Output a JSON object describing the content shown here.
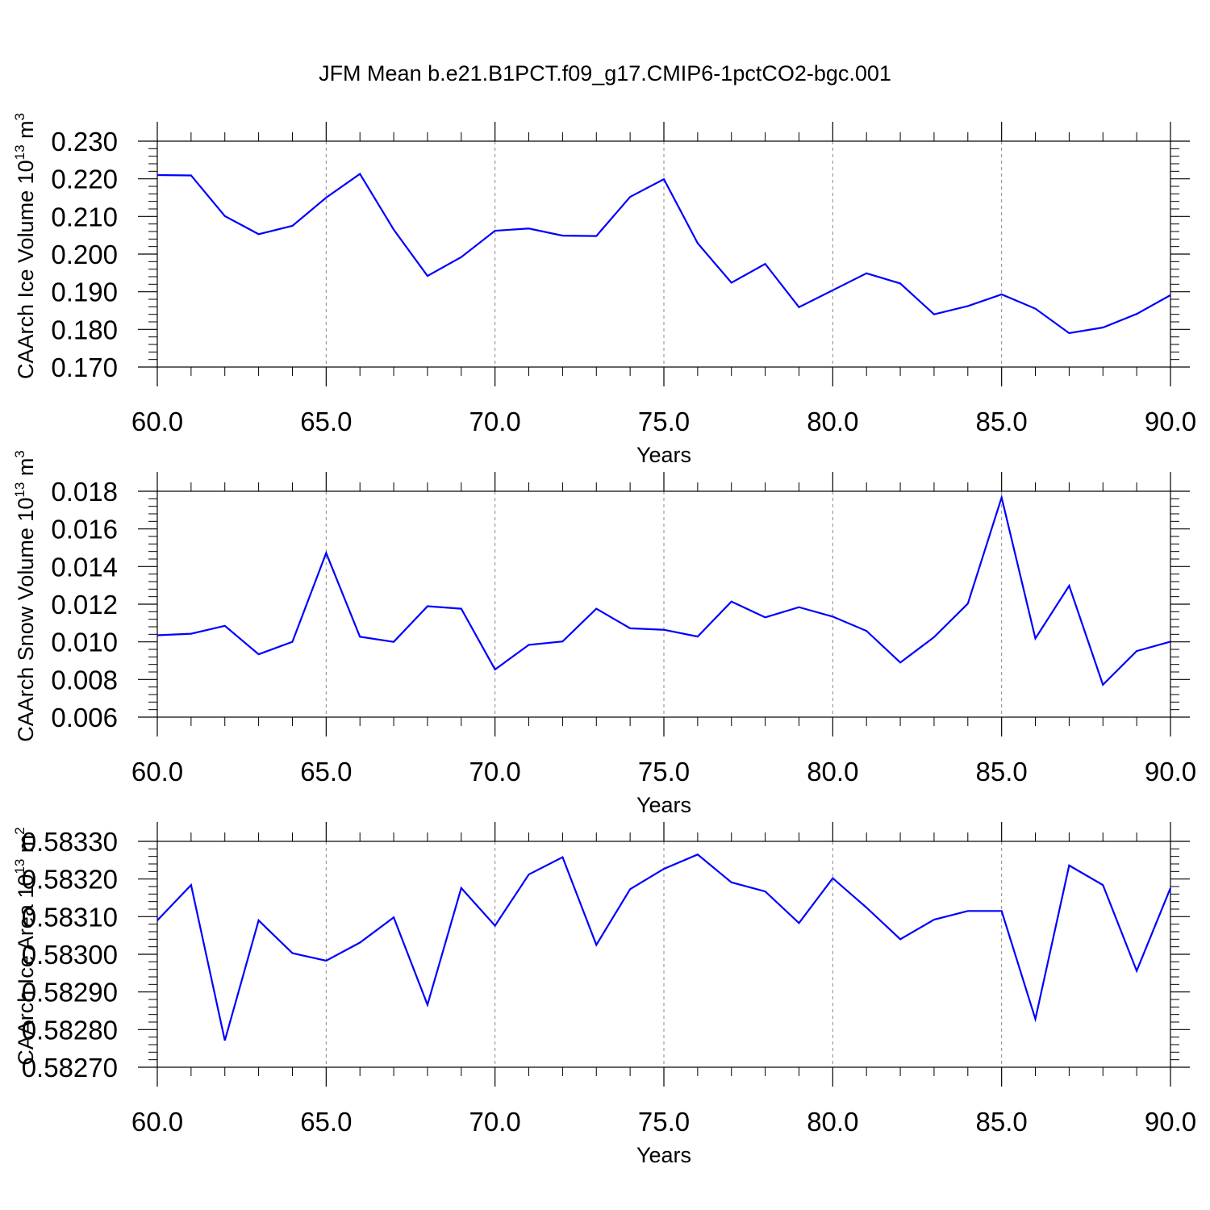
{
  "title": "JFM Mean b.e21.B1PCT.f09_g17.CMIP6-1pctCO2-bgc.001",
  "style": {
    "line_color": "#0000ff",
    "axis_color": "#000000",
    "grid_color": "#888888"
  },
  "chart_data": [
    {
      "type": "line",
      "xlabel": "Years",
      "ylabel_main": "CAArch Ice Volume 10",
      "ylabel_exp1": "13",
      "ylabel_unit": " m",
      "ylabel_exp2": "3",
      "xlim": [
        60,
        90
      ],
      "ylim": [
        0.17,
        0.23
      ],
      "x_ticks": [
        60,
        65,
        70,
        75,
        80,
        85,
        90
      ],
      "x_tick_labels": [
        "60.0",
        "65.0",
        "70.0",
        "75.0",
        "80.0",
        "85.0",
        "90.0"
      ],
      "y_ticks": [
        0.17,
        0.18,
        0.19,
        0.2,
        0.21,
        0.22,
        0.23
      ],
      "y_tick_labels": [
        "0.170",
        "0.180",
        "0.190",
        "0.200",
        "0.210",
        "0.220",
        "0.230"
      ],
      "grid": "vertical dashed at major x ticks",
      "x": [
        60,
        61,
        62,
        63,
        64,
        65,
        66,
        67,
        68,
        69,
        70,
        71,
        72,
        73,
        74,
        75,
        76,
        77,
        78,
        79,
        80,
        81,
        82,
        83,
        84,
        85,
        86,
        87,
        88,
        89,
        90
      ],
      "values": [
        0.221,
        0.2209,
        0.2101,
        0.2053,
        0.2075,
        0.215,
        0.2213,
        0.2065,
        0.1942,
        0.1992,
        0.2062,
        0.2068,
        0.2049,
        0.2048,
        0.2152,
        0.2199,
        0.2029,
        0.1924,
        0.1974,
        0.1859,
        0.1904,
        0.1949,
        0.1922,
        0.184,
        0.1862,
        0.1893,
        0.1855,
        0.179,
        0.1805,
        0.1841,
        0.1891
      ]
    },
    {
      "type": "line",
      "xlabel": "Years",
      "ylabel_main": "CAArch Snow Volume 10",
      "ylabel_exp1": "13",
      "ylabel_unit": " m",
      "ylabel_exp2": "3",
      "xlim": [
        60,
        90
      ],
      "ylim": [
        0.006,
        0.018
      ],
      "x_ticks": [
        60,
        65,
        70,
        75,
        80,
        85,
        90
      ],
      "x_tick_labels": [
        "60.0",
        "65.0",
        "70.0",
        "75.0",
        "80.0",
        "85.0",
        "90.0"
      ],
      "y_ticks": [
        0.006,
        0.008,
        0.01,
        0.012,
        0.014,
        0.016,
        0.018
      ],
      "y_tick_labels": [
        "0.006",
        "0.008",
        "0.010",
        "0.012",
        "0.014",
        "0.016",
        "0.018"
      ],
      "grid": "vertical dashed at major x ticks",
      "x": [
        60,
        61,
        62,
        63,
        64,
        65,
        66,
        67,
        68,
        69,
        70,
        71,
        72,
        73,
        74,
        75,
        76,
        77,
        78,
        79,
        80,
        81,
        82,
        83,
        84,
        85,
        86,
        87,
        88,
        89,
        90
      ],
      "values": [
        0.01035,
        0.01043,
        0.01085,
        0.00934,
        0.01,
        0.01472,
        0.01027,
        0.01,
        0.01189,
        0.01176,
        0.00853,
        0.00984,
        0.01002,
        0.01176,
        0.01072,
        0.01064,
        0.01028,
        0.01214,
        0.0113,
        0.01184,
        0.01134,
        0.01058,
        0.0089,
        0.01025,
        0.01203,
        0.01767,
        0.01018,
        0.01298,
        0.00772,
        0.00951,
        0.01001
      ]
    },
    {
      "type": "line",
      "xlabel": "Years",
      "ylabel_main": "CAArch Ice Area 10",
      "ylabel_exp1": "13",
      "ylabel_unit": " m",
      "ylabel_exp2": "2",
      "xlim": [
        60,
        90
      ],
      "ylim": [
        0.5827,
        0.5833
      ],
      "x_ticks": [
        60,
        65,
        70,
        75,
        80,
        85,
        90
      ],
      "x_tick_labels": [
        "60.0",
        "65.0",
        "70.0",
        "75.0",
        "80.0",
        "85.0",
        "90.0"
      ],
      "y_ticks": [
        0.5827,
        0.5828,
        0.5829,
        0.583,
        0.5831,
        0.5832,
        0.5833
      ],
      "y_tick_labels": [
        "0.58270",
        "0.58280",
        "0.58290",
        "0.58300",
        "0.58310",
        "0.58320",
        "0.58330"
      ],
      "grid": "vertical dashed at major x ticks",
      "x": [
        60,
        61,
        62,
        63,
        64,
        65,
        66,
        67,
        68,
        69,
        70,
        71,
        72,
        73,
        74,
        75,
        76,
        77,
        78,
        79,
        80,
        81,
        82,
        83,
        84,
        85,
        86,
        87,
        88,
        89,
        90
      ],
      "values": [
        0.58309,
        0.583184,
        0.582771,
        0.58309,
        0.583003,
        0.582983,
        0.583031,
        0.583098,
        0.582866,
        0.583176,
        0.583076,
        0.583212,
        0.583258,
        0.583025,
        0.583173,
        0.583227,
        0.583265,
        0.583191,
        0.583167,
        0.583083,
        0.583202,
        0.583124,
        0.58304,
        0.583092,
        0.583115,
        0.583115,
        0.582828,
        0.583236,
        0.583184,
        0.582956,
        0.583176
      ]
    }
  ]
}
